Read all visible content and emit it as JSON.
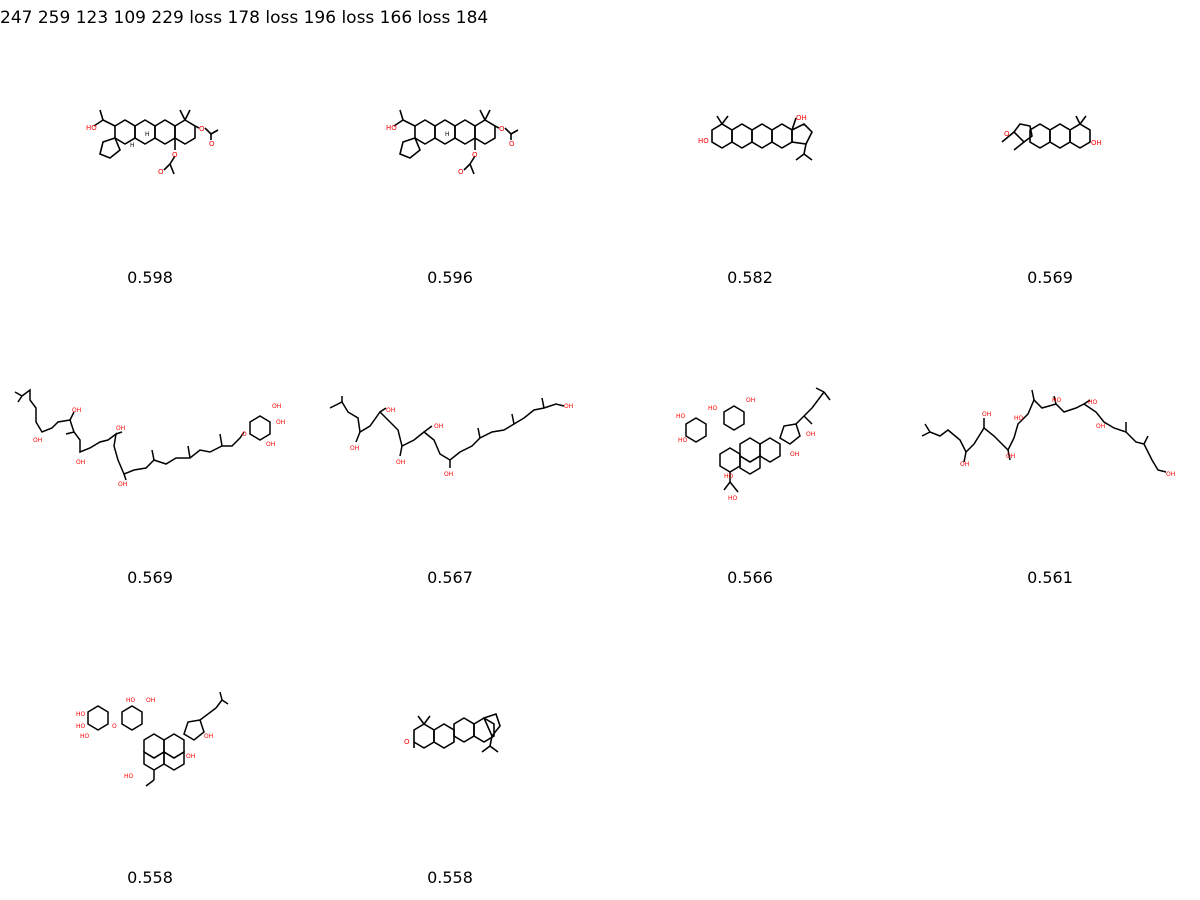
{
  "header": {
    "text": "247 259 123 109 229 loss 178 loss 196 loss 166 loss 184"
  },
  "colors": {
    "bond": "#000000",
    "heteroatom": "#ff0000",
    "background": "#ffffff"
  },
  "atom_labels": {
    "hydroxyl": "HO",
    "hydroxyl_right": "OH",
    "oxygen": "O",
    "hydrogen": "H"
  },
  "molecules": [
    {
      "id": 1,
      "score": "0.598",
      "kind": "diacetoxy-hopane-triterpenoid"
    },
    {
      "id": 2,
      "score": "0.596",
      "kind": "diacetoxy-hopane-triterpenoid"
    },
    {
      "id": 3,
      "score": "0.582",
      "kind": "lupane-triterpenoid"
    },
    {
      "id": 4,
      "score": "0.569",
      "kind": "epoxy-triterpenoid"
    },
    {
      "id": 5,
      "score": "0.569",
      "kind": "polyhydroxy-polyprenyl-glycoside"
    },
    {
      "id": 6,
      "score": "0.567",
      "kind": "polyhydroxy-polyprenol"
    },
    {
      "id": 7,
      "score": "0.566",
      "kind": "dammarane-glycoside"
    },
    {
      "id": 8,
      "score": "0.561",
      "kind": "polyhydroxy-polyprenol"
    },
    {
      "id": 9,
      "score": "0.558",
      "kind": "dammarane-diglycoside"
    },
    {
      "id": 10,
      "score": "0.558",
      "kind": "lupenone-triterpenoid"
    }
  ]
}
